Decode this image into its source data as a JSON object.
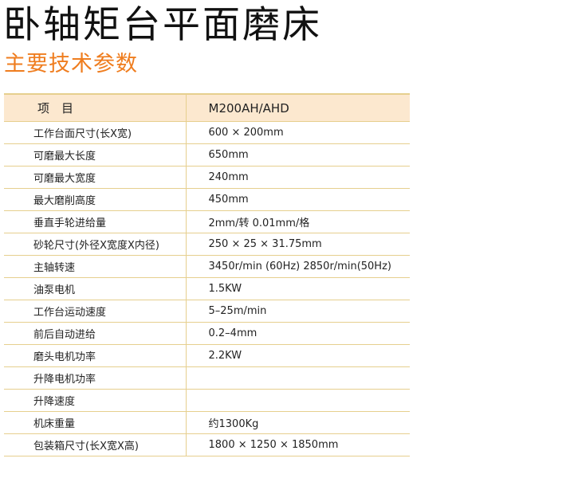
{
  "title": "卧轴矩台平面磨床",
  "subtitle": "主要技术参数",
  "colors": {
    "accent": "#ef7d1f",
    "header_bg": "#fce8cf",
    "rule": "#e6cf8e"
  },
  "table": {
    "header": [
      "项　目",
      "M200AH/AHD"
    ],
    "rows": [
      [
        "工作台面尺寸(长X宽)",
        "600 × 200mm"
      ],
      [
        "可磨最大长度",
        "650mm"
      ],
      [
        "可磨最大宽度",
        "240mm"
      ],
      [
        "最大磨削高度",
        "450mm"
      ],
      [
        "垂直手轮进给量",
        "2mm/转  0.01mm/格"
      ],
      [
        "砂轮尺寸(外径X宽度X内径)",
        "250 × 25 × 31.75mm"
      ],
      [
        "主轴转速",
        "3450r/min (60Hz)   2850r/min(50Hz)"
      ],
      [
        "油泵电机",
        "1.5KW"
      ],
      [
        "工作台运动速度",
        "5–25m/min"
      ],
      [
        "前后自动进给",
        "0.2–4mm"
      ],
      [
        "磨头电机功率",
        "2.2KW"
      ],
      [
        "升降电机功率",
        ""
      ],
      [
        "升降速度",
        ""
      ],
      [
        "机床重量",
        "约1300Kg"
      ],
      [
        "包装箱尺寸(长X宽X高)",
        "1800 × 1250 × 1850mm"
      ]
    ]
  }
}
